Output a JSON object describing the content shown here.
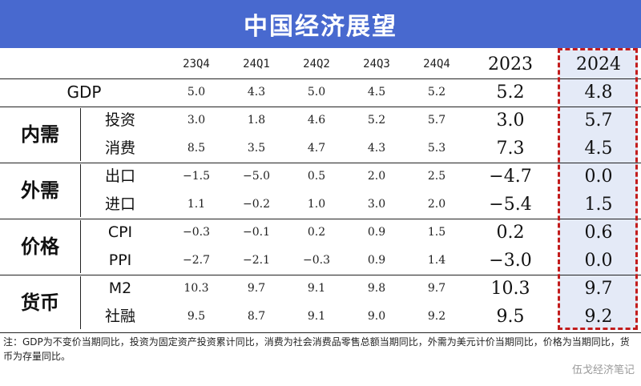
{
  "title": "中国经济展望",
  "columns": [
    "23Q4",
    "24Q1",
    "24Q2",
    "24Q3",
    "24Q4",
    "2023",
    "2024"
  ],
  "gdp": {
    "label": "GDP",
    "values": [
      "5.0",
      "4.3",
      "5.0",
      "4.5",
      "5.2",
      "5.2",
      "4.8"
    ]
  },
  "groups": [
    {
      "label": "内需",
      "rows": [
        {
          "label": "投资",
          "values": [
            "3.0",
            "1.8",
            "4.6",
            "5.2",
            "5.7",
            "3.0",
            "5.7"
          ]
        },
        {
          "label": "消费",
          "values": [
            "8.5",
            "3.5",
            "4.7",
            "4.3",
            "5.3",
            "7.3",
            "4.5"
          ]
        }
      ]
    },
    {
      "label": "外需",
      "rows": [
        {
          "label": "出口",
          "values": [
            "−1.5",
            "−5.0",
            "0.5",
            "2.0",
            "2.5",
            "−4.7",
            "0.0"
          ]
        },
        {
          "label": "进口",
          "values": [
            "1.1",
            "−0.2",
            "1.0",
            "3.0",
            "2.0",
            "−5.4",
            "1.5"
          ]
        }
      ]
    },
    {
      "label": "价格",
      "rows": [
        {
          "label": "CPI",
          "values": [
            "−0.3",
            "−0.1",
            "0.2",
            "0.9",
            "1.5",
            "0.2",
            "0.6"
          ]
        },
        {
          "label": "PPI",
          "values": [
            "−2.7",
            "−2.1",
            "−0.3",
            "0.9",
            "1.4",
            "−3.0",
            "0.0"
          ]
        }
      ]
    },
    {
      "label": "货币",
      "rows": [
        {
          "label": "M2",
          "values": [
            "10.3",
            "9.7",
            "9.1",
            "9.8",
            "9.7",
            "10.3",
            "9.7"
          ]
        },
        {
          "label": "社融",
          "values": [
            "9.5",
            "8.7",
            "9.1",
            "9.0",
            "9.2",
            "9.5",
            "9.2"
          ]
        }
      ]
    }
  ],
  "footnote": "注：GDP为不变价当期同比，投资为固定资产投资累计同比，消费为社会消费品零售总额当期同比，外需为美元计价当期同比，价格为当期同比，货币为存量同比。",
  "watermark": "伍戈经济笔记",
  "colors": {
    "header_bg": "#4869cf",
    "highlight_bg": "#e4eaf7",
    "dashed_border": "#c21d1d"
  }
}
